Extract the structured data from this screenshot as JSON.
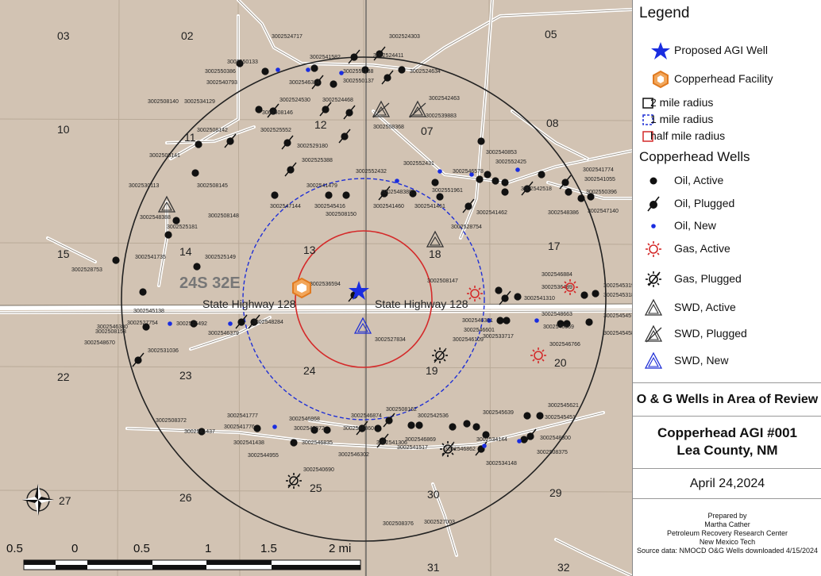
{
  "legend": {
    "title": "Legend",
    "items_top": [
      {
        "symbol": "star",
        "label": "Proposed AGI Well"
      },
      {
        "symbol": "hexagon",
        "label": "Copperhead Facility"
      }
    ],
    "radii": [
      {
        "symbol": "square-black",
        "label": "2 mile radius"
      },
      {
        "symbol": "square-blue-dash",
        "label": "1 mile radius"
      },
      {
        "symbol": "square-red",
        "label": "half mile radius"
      }
    ],
    "wells_title": "Copperhead Wells",
    "wells": [
      {
        "symbol": "oil-active",
        "label": "Oil, Active"
      },
      {
        "symbol": "oil-plugged",
        "label": "Oil, Plugged"
      },
      {
        "symbol": "oil-new",
        "label": "Oil, New"
      },
      {
        "symbol": "gas-active",
        "label": "Gas, Active"
      },
      {
        "symbol": "gas-plugged",
        "label": "Gas, Plugged"
      },
      {
        "symbol": "swd-active",
        "label": "SWD, Active"
      },
      {
        "symbol": "swd-plugged",
        "label": "SWD, Plugged"
      },
      {
        "symbol": "swd-new",
        "label": "SWD, New"
      }
    ]
  },
  "title_block": {
    "heading": "O & G Wells in Area of Review",
    "project_line1": "Copperhead AGI #001",
    "project_line2": "Lea County, NM",
    "date": "April 24,2024",
    "prepared_by": "Prepared by",
    "author": "Martha Cather",
    "org": "Petroleum Recovery Research Center",
    "school": "New Mexico Tech",
    "source": "Source data: NMOCD O&G Wells downloaded 4/15/2024"
  },
  "map": {
    "township_label": "24S 32E",
    "road_labels": [
      "State Highway 128",
      "State Highway 128"
    ],
    "sections": [
      "03",
      "02",
      "05",
      "10",
      "11",
      "12",
      "07",
      "08",
      "15",
      "14",
      "13",
      "18",
      "17",
      "22",
      "23",
      "24",
      "19",
      "20",
      "27",
      "26",
      "25",
      "30",
      "29",
      "31",
      "32"
    ],
    "scale_labels": [
      "0.5",
      "0",
      "0.5",
      "1",
      "1.5",
      "2 mi"
    ],
    "well_labels": [
      "3002524717",
      "3002524303",
      "3002550133",
      "3002541582",
      "3002524411",
      "3002550386",
      "3002551138",
      "3002524634",
      "3002540793",
      "3002546324",
      "3002550137",
      "3002508140",
      "3002534129",
      "3002524530",
      "3002524468",
      "3002542463",
      "3002508146",
      "3002539883",
      "3002508142",
      "3002525552",
      "3002508368",
      "3002529180",
      "3002540853",
      "3002508141",
      "3002525388",
      "3002552425",
      "3002552431",
      "3002541774",
      "3002530113",
      "3002508145",
      "3002541479",
      "3002552432",
      "3002546578",
      "3002541055",
      "3002551961",
      "3002548389",
      "3002542518",
      "3002550396",
      "3002547144",
      "3002545416",
      "3002541460",
      "3002541461",
      "3002541462",
      "3002548386",
      "3002547140",
      "3002548388",
      "3002508148",
      "3002508150",
      "3002525181",
      "3002528754",
      "3002541735",
      "3002525149",
      "3002528753",
      "3002546884",
      "3002536594",
      "3002508147",
      "3002536489",
      "3002541310",
      "3002545138",
      "3002527754",
      "3002525492",
      "3002548284",
      "3002546380",
      "3002548663",
      "3002508153",
      "3002546379",
      "3002546381",
      "3002546601",
      "3002546669",
      "3002548670",
      "3002527834",
      "3002546109",
      "3002533717",
      "3002546766",
      "3002531036",
      "3002508162",
      "3002545621",
      "3002508372",
      "3002541777",
      "3002546868",
      "3002546874",
      "3002542536",
      "3002545639",
      "3002545451",
      "3002541437",
      "3002541776",
      "3002546872",
      "3002546860",
      "3002546869",
      "3002541517",
      "3002534144",
      "3002548300",
      "3002541438",
      "3002546835",
      "3002541306",
      "3002546862",
      "3002534148",
      "3002508375",
      "3002544955",
      "3002546302",
      "3002540690",
      "3002508376",
      "3002527003",
      "3002545319",
      "3002545318",
      "3002545457",
      "3002545458",
      "3002555503",
      "3002555036"
    ]
  }
}
